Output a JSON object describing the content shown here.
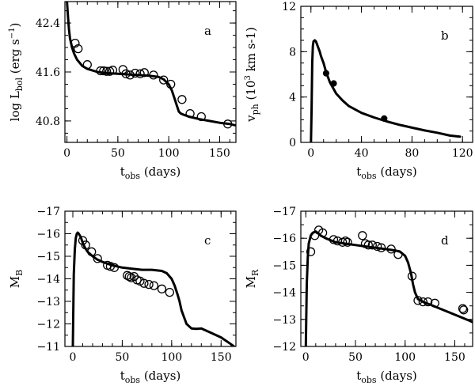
{
  "chart_data": [
    {
      "id": "a",
      "type": "line",
      "panel_letter": "a",
      "xlabel": {
        "main": "t",
        "sub": "obs",
        "rest": " (days)"
      },
      "ylabel": {
        "main": "log L",
        "sub": "bol",
        "rest": " (erg s",
        "sup": "-1",
        "close": ")"
      },
      "xlim": [
        -2,
        166
      ],
      "ylim": [
        40.45,
        42.75
      ],
      "y_inverted": false,
      "xticks": [
        0,
        50,
        100,
        150
      ],
      "xtick_labels": [
        "0",
        "50",
        "100",
        "150"
      ],
      "yticks": [
        40.8,
        41.6,
        42.4
      ],
      "ytick_labels": [
        "40.8",
        "41.6",
        "42.4"
      ],
      "minor_x": 10,
      "minor_y": 0.2,
      "series": [
        {
          "name": "model",
          "style": "line",
          "x": [
            0,
            1,
            2,
            3,
            5,
            7,
            10,
            15,
            20,
            30,
            40,
            50,
            60,
            70,
            80,
            90,
            95,
            100,
            103,
            106,
            108,
            110,
            112,
            115,
            120,
            130,
            140,
            150,
            160,
            165
          ],
          "y": [
            42.75,
            42.5,
            42.3,
            42.15,
            42.0,
            41.9,
            41.8,
            41.7,
            41.65,
            41.6,
            41.58,
            41.57,
            41.56,
            41.55,
            41.54,
            41.52,
            41.48,
            41.4,
            41.3,
            41.15,
            41.05,
            40.95,
            40.92,
            40.9,
            40.87,
            40.83,
            40.8,
            40.77,
            40.75,
            40.73
          ]
        },
        {
          "name": "observations",
          "style": "open",
          "x": [
            8,
            11,
            20,
            33,
            36,
            39,
            42,
            45,
            55,
            58,
            62,
            67,
            72,
            76,
            85,
            95,
            102,
            113,
            121,
            132,
            158
          ],
          "y": [
            42.07,
            41.98,
            41.72,
            41.62,
            41.62,
            41.61,
            41.61,
            41.63,
            41.64,
            41.57,
            41.55,
            41.58,
            41.57,
            41.59,
            41.55,
            41.47,
            41.4,
            41.15,
            40.92,
            40.87,
            40.75
          ]
        }
      ]
    },
    {
      "id": "b",
      "type": "line",
      "panel_letter": "b",
      "xlabel": {
        "main": "t",
        "sub": "obs",
        "rest": " (days)"
      },
      "ylabel": {
        "main": "v",
        "sub": "ph",
        "rest": " (10",
        "sup": "3",
        "close": " km s-1)"
      },
      "xlim": [
        -8,
        128
      ],
      "ylim": [
        0,
        12
      ],
      "y_inverted": false,
      "xticks": [
        0,
        40,
        80,
        120
      ],
      "xtick_labels": [
        "0",
        "40",
        "80",
        "120"
      ],
      "yticks": [
        0,
        4,
        8,
        12
      ],
      "ytick_labels": [
        "0",
        "4",
        "8",
        "12"
      ],
      "minor_x": 10,
      "minor_y": 1,
      "series": [
        {
          "name": "model",
          "style": "line",
          "x": [
            0,
            0.5,
            1,
            1.5,
            2,
            3,
            4,
            5,
            6,
            7,
            8,
            10,
            12,
            15,
            20,
            25,
            30,
            40,
            50,
            60,
            70,
            80,
            90,
            100,
            110,
            118
          ],
          "y": [
            0,
            3,
            7,
            8.5,
            8.9,
            9.0,
            8.9,
            8.6,
            8.3,
            8.0,
            7.6,
            7.0,
            6.2,
            5.3,
            4.3,
            3.7,
            3.2,
            2.6,
            2.2,
            1.85,
            1.55,
            1.3,
            1.05,
            0.85,
            0.6,
            0.5
          ]
        },
        {
          "name": "observations",
          "style": "filled",
          "x": [
            12,
            18,
            58
          ],
          "y": [
            6.1,
            5.2,
            2.1
          ]
        }
      ]
    },
    {
      "id": "c",
      "type": "line",
      "panel_letter": "c",
      "xlabel": {
        "main": "t",
        "sub": "obs",
        "rest": " (days)"
      },
      "ylabel": {
        "main": "M",
        "sub": "B",
        "rest": "",
        "sup": "",
        "close": ""
      },
      "xlim": [
        -8,
        165
      ],
      "ylim": [
        -11,
        -17
      ],
      "y_inverted": true,
      "xticks": [
        0,
        50,
        100,
        150
      ],
      "xtick_labels": [
        "0",
        "50",
        "100",
        "150"
      ],
      "yticks": [
        -11,
        -12,
        -13,
        -14,
        -15,
        -16,
        -17
      ],
      "ytick_labels": [
        "-11",
        "-12",
        "-13",
        "-14",
        "-15",
        "-16",
        "-17"
      ],
      "minor_x": 10,
      "minor_y": 0.5,
      "series": [
        {
          "name": "model",
          "style": "line",
          "x": [
            0,
            1,
            2,
            3,
            4,
            5,
            6,
            8,
            10,
            12,
            15,
            20,
            25,
            30,
            40,
            50,
            60,
            70,
            80,
            90,
            95,
            100,
            103,
            106,
            108,
            110,
            115,
            120,
            125,
            130,
            140,
            150,
            160,
            163
          ],
          "y": [
            -11,
            -14.2,
            -15.3,
            -15.8,
            -16.0,
            -16.05,
            -16.0,
            -15.85,
            -15.6,
            -15.4,
            -15.2,
            -15.0,
            -14.85,
            -14.75,
            -14.6,
            -14.5,
            -14.45,
            -14.4,
            -14.4,
            -14.35,
            -14.25,
            -14.0,
            -13.7,
            -13.3,
            -13.0,
            -12.6,
            -12.0,
            -11.8,
            -11.78,
            -11.8,
            -11.6,
            -11.4,
            -11.1,
            -11.0
          ]
        },
        {
          "name": "observations",
          "style": "open",
          "x": [
            10,
            13,
            19,
            25,
            35,
            38,
            42,
            55,
            57,
            59,
            62,
            65,
            68,
            72,
            77,
            82,
            90,
            98
          ],
          "y": [
            -15.7,
            -15.5,
            -15.2,
            -14.9,
            -14.6,
            -14.55,
            -14.5,
            -14.15,
            -14.1,
            -14.05,
            -14.1,
            -13.95,
            -13.9,
            -13.8,
            -13.75,
            -13.7,
            -13.55,
            -13.4
          ]
        }
      ]
    },
    {
      "id": "d",
      "type": "line",
      "panel_letter": "d",
      "xlabel": {
        "main": "t",
        "sub": "obs",
        "rest": " (days)"
      },
      "ylabel": {
        "main": "M",
        "sub": "R",
        "rest": "",
        "sup": "",
        "close": ""
      },
      "xlim": [
        -5,
        168
      ],
      "ylim": [
        -12,
        -17
      ],
      "y_inverted": true,
      "xticks": [
        0,
        50,
        100,
        150
      ],
      "xtick_labels": [
        "0",
        "50",
        "100",
        "150"
      ],
      "yticks": [
        -12,
        -13,
        -14,
        -15,
        -16,
        -17
      ],
      "ytick_labels": [
        "-12",
        "-13",
        "-14",
        "-15",
        "-16",
        "-17"
      ],
      "minor_x": 10,
      "minor_y": 0.5,
      "series": [
        {
          "name": "model",
          "style": "line",
          "x": [
            0,
            1,
            2,
            3,
            5,
            7,
            10,
            12,
            15,
            20,
            30,
            40,
            50,
            60,
            70,
            80,
            90,
            95,
            100,
            103,
            106,
            108,
            110,
            113,
            118,
            125,
            135,
            145,
            155,
            165,
            168
          ],
          "y": [
            -12,
            -14.3,
            -15.3,
            -15.8,
            -16.1,
            -16.2,
            -16.25,
            -16.2,
            -16.1,
            -16.0,
            -15.85,
            -15.8,
            -15.75,
            -15.7,
            -15.65,
            -15.6,
            -15.55,
            -15.5,
            -15.35,
            -15.1,
            -14.7,
            -14.3,
            -14.0,
            -13.75,
            -13.65,
            -13.55,
            -13.4,
            -13.25,
            -13.1,
            -12.95,
            -12.9
          ]
        },
        {
          "name": "observations",
          "style": "open",
          "x": [
            5,
            9,
            13,
            17,
            28,
            32,
            37,
            40,
            42,
            57,
            60,
            63,
            67,
            72,
            76,
            86,
            93,
            107,
            113,
            118,
            123,
            130,
            158,
            159
          ],
          "y": [
            -15.5,
            -16.1,
            -16.3,
            -16.2,
            -15.95,
            -15.9,
            -15.85,
            -15.9,
            -15.85,
            -16.1,
            -15.8,
            -15.75,
            -15.75,
            -15.7,
            -15.65,
            -15.6,
            -15.4,
            -14.6,
            -13.7,
            -13.65,
            -13.65,
            -13.6,
            -13.4,
            -13.35
          ]
        }
      ]
    }
  ]
}
